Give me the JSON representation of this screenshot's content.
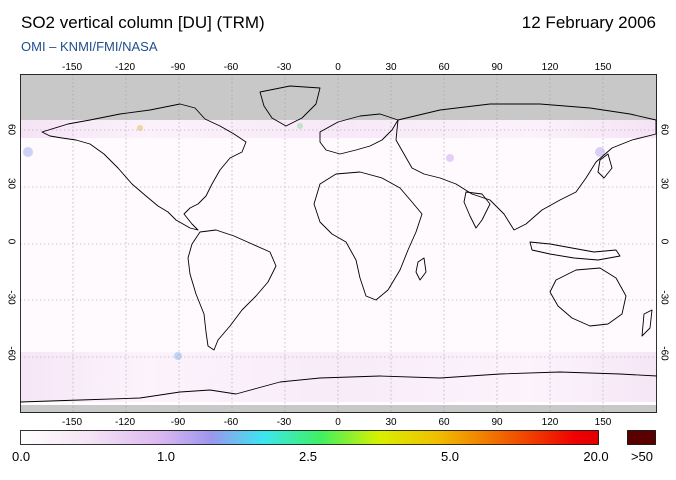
{
  "header": {
    "title": "SO2 vertical column [DU] (TRM)",
    "date": "12 February 2006",
    "credit": "OMI  –  KNMI/FMI/NASA"
  },
  "map": {
    "projection": "equirectangular",
    "lon_range": [
      -180,
      180
    ],
    "lat_range": [
      -90,
      90
    ],
    "lon_ticks": [
      "-150",
      "-120",
      "-90",
      "-60",
      "-30",
      "0",
      "30",
      "60",
      "90",
      "120",
      "150"
    ],
    "lat_ticks": [
      "60",
      "30",
      "0",
      "-30",
      "-60"
    ],
    "grid": "dotted",
    "no_data_color": "#c8c8c8",
    "coastline_color": "#000000"
  },
  "colorbar": {
    "labels": [
      "0.0",
      "1.0",
      "2.5",
      "5.0",
      "20.0",
      ">50"
    ],
    "over_color": "#5a0000",
    "colors": [
      "#ffffff",
      "#f0d8f0",
      "#d8b0f0",
      "#9090f0",
      "#30e0f0",
      "#40f060",
      "#d8f000",
      "#f0c000",
      "#f06000",
      "#f00000"
    ]
  }
}
